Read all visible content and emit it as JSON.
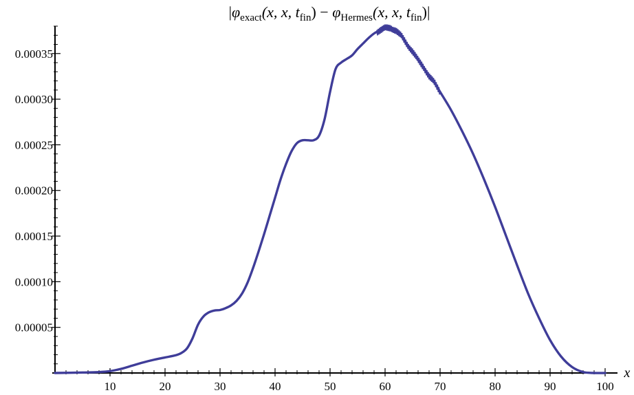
{
  "chart_data": {
    "type": "line",
    "title": {
      "bar_left": "|",
      "phi1": "φ",
      "sub1": "exact",
      "args1": "(x, x, t",
      "fin1": "fin",
      "close1": ")",
      "minus": " − ",
      "phi2": "φ",
      "sub2": "Hermes",
      "args2": "(x, x, t",
      "fin2": "fin",
      "close2": ")",
      "bar_right": "|"
    },
    "xlabel": "x",
    "ylabel": "",
    "xlim": [
      0,
      100
    ],
    "ylim": [
      0,
      0.00038
    ],
    "x_ticks": [
      10,
      20,
      30,
      40,
      50,
      60,
      70,
      80,
      90,
      100
    ],
    "y_ticks": [
      "0.00005",
      "0.00010",
      "0.00015",
      "0.00020",
      "0.00025",
      "0.00030",
      "0.00035"
    ],
    "line_color": "#3f3d99",
    "series": [
      {
        "x": [
          0,
          5,
          8,
          10,
          12,
          14,
          16,
          18,
          20,
          22,
          23,
          24,
          25,
          26,
          27,
          28,
          29,
          30,
          31,
          32,
          33,
          34,
          35,
          36,
          37,
          38,
          39,
          40,
          41,
          42,
          43,
          44,
          45,
          46,
          47,
          48,
          49,
          50,
          51,
          52,
          53,
          54,
          55,
          56,
          57,
          58,
          59,
          60,
          61,
          62,
          63,
          64,
          65,
          66,
          67,
          68,
          69,
          70,
          72,
          74,
          76,
          78,
          80,
          82,
          84,
          86,
          88,
          90,
          92,
          94,
          96,
          98,
          100
        ],
        "y": [
          0,
          5e-07,
          1e-06,
          2e-06,
          4.5e-06,
          8e-06,
          1.15e-05,
          1.45e-05,
          1.7e-05,
          1.95e-05,
          2.2e-05,
          2.7e-05,
          3.8e-05,
          5.3e-05,
          6.2e-05,
          6.65e-05,
          6.85e-05,
          6.9e-05,
          7.1e-05,
          7.4e-05,
          7.9e-05,
          8.7e-05,
          9.9e-05,
          0.000115,
          0.000133,
          0.000152,
          0.000172,
          0.000192,
          0.000212,
          0.000229,
          0.000243,
          0.000252,
          0.000255,
          0.000255,
          0.000255,
          0.00026,
          0.000278,
          0.000308,
          0.000333,
          0.00034,
          0.000344,
          0.000348,
          0.000355,
          0.000361,
          0.000367,
          0.000372,
          0.000375,
          0.000378,
          0.000378,
          0.000375,
          0.000369,
          0.00036,
          0.000352,
          0.000343,
          0.000335,
          0.000325,
          0.000318,
          0.000308,
          0.000288,
          0.000265,
          0.00024,
          0.000212,
          0.000182,
          0.00015,
          0.000118,
          8.7e-05,
          6e-05,
          3.6e-05,
          1.8e-05,
          6.5e-06,
          1e-06,
          0,
          0
        ]
      }
    ],
    "noise_regions": [
      {
        "x_start": 58.5,
        "x_end": 70,
        "amplitude": 4e-06
      }
    ],
    "grid": false,
    "legend": "none"
  }
}
